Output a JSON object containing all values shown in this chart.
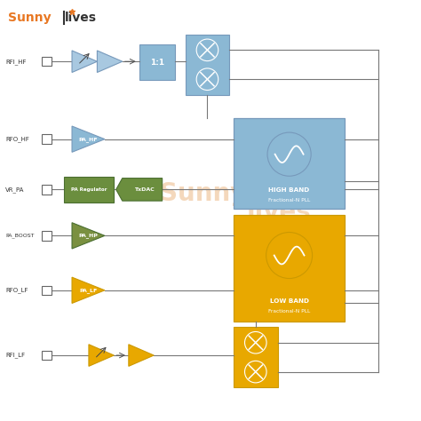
{
  "background_color": "#ffffff",
  "logo_color_sunny": "#E87722",
  "logo_color_lives": "#333333",
  "blue_color": "#8BB8D4",
  "green_color": "#6B8E3E",
  "yellow_color": "#E8A800",
  "watermark_color": "#F0C8A0",
  "labels": {
    "mixer_hf": "1:1",
    "pa_hf": "PA_HF",
    "pa_regulator": "PA Regulator",
    "txdac": "TxDAC",
    "pa_hp": "PA_HP",
    "pa_lf": "PA_LF",
    "high_band_line1": "HIGH BAND",
    "high_band_line2": "Fractional-N PLL",
    "low_band_line1": "LOW BAND",
    "low_band_line2": "Fractional-N PLL"
  },
  "pins": [
    "RFI_HF",
    "RFO_HF",
    "VR_PA",
    "PA_BOOST",
    "RFO_LF",
    "RFI_LF"
  ]
}
